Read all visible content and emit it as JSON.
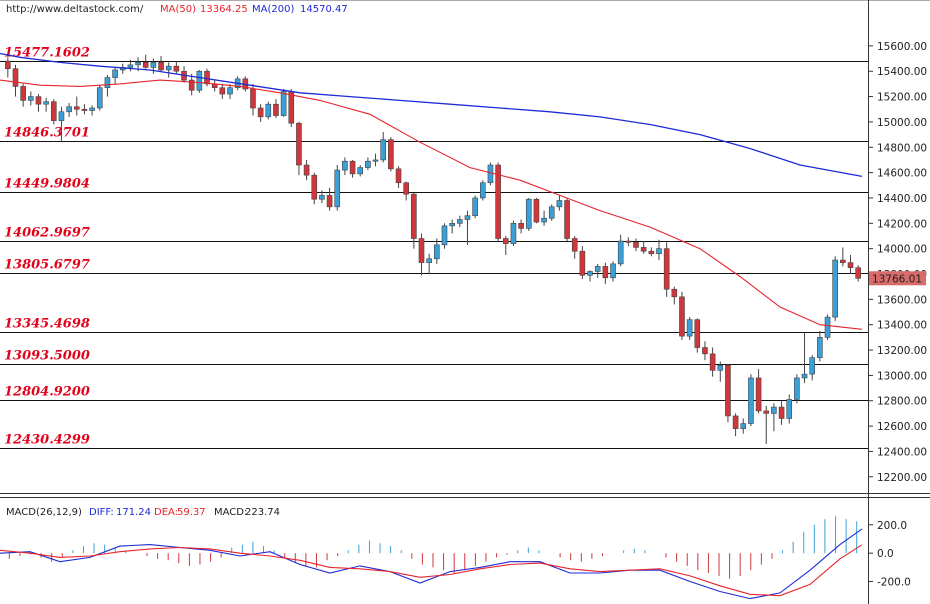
{
  "header": {
    "site": "http://www.deltastock.com/",
    "ma50_label": "MA(50)",
    "ma50_value": "13364.25",
    "ma200_label": "MA(200)",
    "ma200_value": "14570.47"
  },
  "macd_header": {
    "name": "MACD(26,12,9)",
    "diff_label": "DIFF:",
    "diff_value": "171.24",
    "dea_label": "DEA:",
    "dea_value": "59.37",
    "macd_label": "MACD:",
    "macd_value": "223.74"
  },
  "current_price": "13766.01",
  "colors": {
    "bull": "#3aa0d8",
    "bear": "#d0373d",
    "ma50": "#e8242c",
    "ma200": "#1d2bd6",
    "level_text": "#e2001a",
    "price_tag": "#d96a6a"
  },
  "chart_data": {
    "type": "candlestick",
    "price_axis": {
      "ylim": [
        12080,
        15820
      ],
      "ticks": [
        "15600.00",
        "15400.00",
        "15200.00",
        "15000.00",
        "14800.00",
        "14600.00",
        "14400.00",
        "14200.00",
        "14000.00",
        "13800.00",
        "13600.00",
        "13400.00",
        "13200.00",
        "13000.00",
        "12800.00",
        "12600.00",
        "12400.00",
        "12200.00"
      ],
      "tick_values": [
        15600,
        15400,
        15200,
        15000,
        14800,
        14600,
        14400,
        14200,
        14000,
        13800,
        13600,
        13400,
        13200,
        13000,
        12800,
        12600,
        12400,
        12200
      ]
    },
    "levels": [
      {
        "label": "15477.1602",
        "value": 15477.1602
      },
      {
        "label": "14846.3701",
        "value": 14846.3701
      },
      {
        "label": "14449.9804",
        "value": 14449.9804
      },
      {
        "label": "14062.9697",
        "value": 14062.9697
      },
      {
        "label": "13805.6797",
        "value": 13805.6797
      },
      {
        "label": "13345.4698",
        "value": 13345.4698
      },
      {
        "label": "13093.5000",
        "value": 13093.5
      },
      {
        "label": "12804.9200",
        "value": 12804.92
      },
      {
        "label": "12430.4299",
        "value": 12430.4299
      }
    ],
    "ma200": {
      "name": "MA(200)",
      "values": [
        [
          0,
          15540
        ],
        [
          20,
          15510
        ],
        [
          60,
          15470
        ],
        [
          100,
          15440
        ],
        [
          150,
          15410
        ],
        [
          200,
          15350
        ],
        [
          250,
          15290
        ],
        [
          300,
          15230
        ],
        [
          350,
          15200
        ],
        [
          400,
          15170
        ],
        [
          450,
          15140
        ],
        [
          500,
          15110
        ],
        [
          550,
          15080
        ],
        [
          600,
          15040
        ],
        [
          650,
          14980
        ],
        [
          700,
          14900
        ],
        [
          750,
          14790
        ],
        [
          800,
          14660
        ],
        [
          862,
          14570
        ]
      ]
    },
    "ma50": {
      "name": "MA(50)",
      "values": [
        [
          0,
          15330
        ],
        [
          40,
          15290
        ],
        [
          80,
          15280
        ],
        [
          120,
          15300
        ],
        [
          160,
          15330
        ],
        [
          200,
          15310
        ],
        [
          240,
          15280
        ],
        [
          280,
          15230
        ],
        [
          320,
          15170
        ],
        [
          370,
          15060
        ],
        [
          420,
          14840
        ],
        [
          470,
          14640
        ],
        [
          520,
          14540
        ],
        [
          560,
          14420
        ],
        [
          600,
          14300
        ],
        [
          650,
          14170
        ],
        [
          700,
          14000
        ],
        [
          740,
          13780
        ],
        [
          780,
          13540
        ],
        [
          820,
          13400
        ],
        [
          862,
          13364
        ]
      ]
    },
    "candles": [
      [
        15480,
        15510,
        15350,
        15420
      ],
      [
        15420,
        15450,
        15200,
        15280
      ],
      [
        15280,
        15300,
        15120,
        15170
      ],
      [
        15170,
        15240,
        15130,
        15200
      ],
      [
        15200,
        15220,
        15080,
        15140
      ],
      [
        15140,
        15190,
        15080,
        15160
      ],
      [
        15160,
        15180,
        14980,
        15010
      ],
      [
        15010,
        15120,
        14840,
        15080
      ],
      [
        15080,
        15150,
        15040,
        15120
      ],
      [
        15120,
        15200,
        15050,
        15100
      ],
      [
        15100,
        15140,
        15060,
        15090
      ],
      [
        15090,
        15130,
        15050,
        15110
      ],
      [
        15110,
        15290,
        15090,
        15270
      ],
      [
        15270,
        15370,
        15200,
        15350
      ],
      [
        15350,
        15430,
        15300,
        15410
      ],
      [
        15410,
        15460,
        15380,
        15430
      ],
      [
        15430,
        15490,
        15400,
        15450
      ],
      [
        15450,
        15510,
        15400,
        15470
      ],
      [
        15470,
        15530,
        15420,
        15430
      ],
      [
        15430,
        15500,
        15380,
        15470
      ],
      [
        15470,
        15520,
        15400,
        15410
      ],
      [
        15410,
        15470,
        15350,
        15440
      ],
      [
        15440,
        15480,
        15380,
        15400
      ],
      [
        15400,
        15440,
        15310,
        15330
      ],
      [
        15330,
        15380,
        15210,
        15250
      ],
      [
        15250,
        15410,
        15230,
        15400
      ],
      [
        15400,
        15420,
        15280,
        15300
      ],
      [
        15300,
        15330,
        15240,
        15270
      ],
      [
        15270,
        15300,
        15180,
        15220
      ],
      [
        15220,
        15300,
        15180,
        15270
      ],
      [
        15270,
        15360,
        15250,
        15340
      ],
      [
        15340,
        15360,
        15240,
        15260
      ],
      [
        15260,
        15300,
        15050,
        15110
      ],
      [
        15110,
        15140,
        15000,
        15040
      ],
      [
        15040,
        15160,
        15020,
        15140
      ],
      [
        15140,
        15180,
        15030,
        15050
      ],
      [
        15050,
        15260,
        15040,
        15240
      ],
      [
        15240,
        15260,
        14960,
        14990
      ],
      [
        14990,
        15000,
        14580,
        14660
      ],
      [
        14660,
        14700,
        14540,
        14580
      ],
      [
        14580,
        14600,
        14350,
        14390
      ],
      [
        14390,
        14460,
        14360,
        14420
      ],
      [
        14420,
        14480,
        14300,
        14330
      ],
      [
        14330,
        14660,
        14300,
        14620
      ],
      [
        14620,
        14720,
        14580,
        14690
      ],
      [
        14690,
        14700,
        14560,
        14590
      ],
      [
        14590,
        14660,
        14570,
        14640
      ],
      [
        14640,
        14720,
        14620,
        14690
      ],
      [
        14690,
        14750,
        14650,
        14700
      ],
      [
        14700,
        14920,
        14680,
        14860
      ],
      [
        14860,
        14880,
        14610,
        14630
      ],
      [
        14630,
        14650,
        14480,
        14520
      ],
      [
        14520,
        14530,
        14380,
        14430
      ],
      [
        14430,
        14440,
        14000,
        14080
      ],
      [
        14080,
        14120,
        13790,
        13890
      ],
      [
        13890,
        13960,
        13800,
        13920
      ],
      [
        13920,
        14080,
        13880,
        14030
      ],
      [
        14030,
        14200,
        14000,
        14180
      ],
      [
        14180,
        14230,
        14120,
        14200
      ],
      [
        14200,
        14260,
        14170,
        14230
      ],
      [
        14230,
        14300,
        14030,
        14260
      ],
      [
        14260,
        14420,
        14240,
        14400
      ],
      [
        14400,
        14540,
        14380,
        14520
      ],
      [
        14520,
        14680,
        14500,
        14660
      ],
      [
        14660,
        14680,
        14060,
        14080
      ],
      [
        14080,
        14100,
        13950,
        14040
      ],
      [
        14040,
        14220,
        14020,
        14200
      ],
      [
        14200,
        14230,
        14120,
        14160
      ],
      [
        14160,
        14400,
        14140,
        14390
      ],
      [
        14390,
        14400,
        14200,
        14210
      ],
      [
        14210,
        14300,
        14180,
        14240
      ],
      [
        14240,
        14350,
        14220,
        14330
      ],
      [
        14330,
        14420,
        14300,
        14380
      ],
      [
        14380,
        14400,
        14060,
        14080
      ],
      [
        14080,
        14100,
        13920,
        13980
      ],
      [
        13980,
        14020,
        13760,
        13790
      ],
      [
        13790,
        13830,
        13740,
        13820
      ],
      [
        13820,
        13880,
        13770,
        13860
      ],
      [
        13860,
        13890,
        13720,
        13770
      ],
      [
        13770,
        13900,
        13740,
        13880
      ],
      [
        13880,
        14110,
        13860,
        14060
      ],
      [
        14060,
        14090,
        14020,
        14050
      ],
      [
        14050,
        14080,
        13980,
        14010
      ],
      [
        14010,
        14060,
        13960,
        13980
      ],
      [
        13980,
        14010,
        13940,
        13960
      ],
      [
        13960,
        14070,
        13910,
        14000
      ],
      [
        14000,
        14050,
        13620,
        13680
      ],
      [
        13680,
        13700,
        13560,
        13620
      ],
      [
        13620,
        13660,
        13280,
        13310
      ],
      [
        13310,
        13460,
        13280,
        13440
      ],
      [
        13440,
        13450,
        13180,
        13220
      ],
      [
        13220,
        13270,
        13120,
        13170
      ],
      [
        13170,
        13220,
        12990,
        13040
      ],
      [
        13040,
        13110,
        12950,
        13080
      ],
      [
        13080,
        13090,
        12630,
        12680
      ],
      [
        12680,
        12700,
        12520,
        12580
      ],
      [
        12580,
        12660,
        12540,
        12620
      ],
      [
        12620,
        13010,
        12600,
        12980
      ],
      [
        12980,
        13050,
        12700,
        12720
      ],
      [
        12720,
        12760,
        12460,
        12700
      ],
      [
        12700,
        12780,
        12560,
        12750
      ],
      [
        12750,
        12800,
        12610,
        12660
      ],
      [
        12660,
        12850,
        12620,
        12810
      ],
      [
        12810,
        13010,
        12780,
        12980
      ],
      [
        12980,
        13340,
        12940,
        13010
      ],
      [
        13010,
        13160,
        12960,
        13140
      ],
      [
        13140,
        13350,
        13110,
        13300
      ],
      [
        13300,
        13480,
        13280,
        13460
      ],
      [
        13460,
        13940,
        13430,
        13910
      ],
      [
        13910,
        14010,
        13860,
        13890
      ],
      [
        13890,
        13950,
        13800,
        13850
      ],
      [
        13850,
        13870,
        13740,
        13766
      ]
    ],
    "macd": {
      "ylim": [
        -330,
        290
      ],
      "ticks": [
        "200.0",
        "0.0",
        "-200.0"
      ],
      "tick_values": [
        200,
        0,
        -200
      ],
      "diff": [
        [
          0,
          0
        ],
        [
          30,
          10
        ],
        [
          60,
          -60
        ],
        [
          90,
          -30
        ],
        [
          120,
          50
        ],
        [
          150,
          60
        ],
        [
          180,
          40
        ],
        [
          210,
          20
        ],
        [
          240,
          -20
        ],
        [
          270,
          10
        ],
        [
          300,
          -80
        ],
        [
          330,
          -140
        ],
        [
          360,
          -90
        ],
        [
          390,
          -130
        ],
        [
          420,
          -210
        ],
        [
          450,
          -130
        ],
        [
          480,
          -100
        ],
        [
          510,
          -60
        ],
        [
          540,
          -60
        ],
        [
          570,
          -140
        ],
        [
          600,
          -140
        ],
        [
          630,
          -120
        ],
        [
          660,
          -120
        ],
        [
          690,
          -200
        ],
        [
          720,
          -270
        ],
        [
          750,
          -320
        ],
        [
          780,
          -280
        ],
        [
          810,
          -120
        ],
        [
          840,
          60
        ],
        [
          862,
          171
        ]
      ],
      "dea": [
        [
          0,
          20
        ],
        [
          30,
          0
        ],
        [
          60,
          -30
        ],
        [
          90,
          -20
        ],
        [
          120,
          10
        ],
        [
          150,
          30
        ],
        [
          180,
          40
        ],
        [
          210,
          30
        ],
        [
          240,
          0
        ],
        [
          270,
          -20
        ],
        [
          300,
          -50
        ],
        [
          330,
          -100
        ],
        [
          360,
          -110
        ],
        [
          390,
          -130
        ],
        [
          420,
          -170
        ],
        [
          450,
          -150
        ],
        [
          480,
          -110
        ],
        [
          510,
          -80
        ],
        [
          540,
          -70
        ],
        [
          570,
          -110
        ],
        [
          600,
          -130
        ],
        [
          630,
          -120
        ],
        [
          660,
          -110
        ],
        [
          690,
          -160
        ],
        [
          720,
          -230
        ],
        [
          750,
          -290
        ],
        [
          780,
          -300
        ],
        [
          810,
          -220
        ],
        [
          840,
          -40
        ],
        [
          862,
          59
        ]
      ],
      "hist": [
        -40,
        -20,
        -10,
        -30,
        -60,
        -30,
        20,
        50,
        70,
        60,
        40,
        20,
        0,
        -20,
        -40,
        -50,
        -70,
        -90,
        -80,
        -60,
        -30,
        40,
        60,
        80,
        50,
        20,
        -40,
        -70,
        -90,
        -100,
        -50,
        -20,
        20,
        60,
        90,
        70,
        50,
        20,
        -40,
        -80,
        -100,
        -120,
        -140,
        -120,
        -90,
        -60,
        -30,
        -10,
        20,
        40,
        20,
        0,
        -30,
        -50,
        -60,
        -40,
        -20,
        0,
        20,
        30,
        20,
        0,
        -30,
        -60,
        -90,
        -120,
        -140,
        -160,
        -180,
        -160,
        -120,
        -80,
        -40,
        20,
        80,
        150,
        200,
        240,
        260,
        240,
        224
      ]
    }
  }
}
